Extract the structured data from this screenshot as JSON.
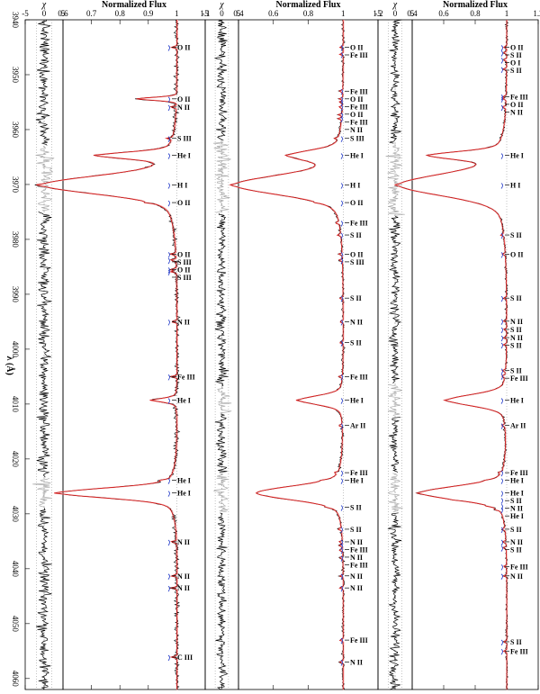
{
  "figure": {
    "y_axis_label": "λ (Å)",
    "wavelength_range": [
      3940,
      4062
    ],
    "wavelength_ticks": [
      "3940",
      "3950",
      "3960",
      "3970",
      "3980",
      "3990",
      "4000",
      "4010",
      "4020",
      "4030",
      "4040",
      "4050",
      "4060"
    ]
  },
  "chart_data": [
    {
      "type": "line",
      "panel": "residual-1",
      "xlabel": "χ",
      "xlim": [
        -5,
        5
      ],
      "x_ticks": [
        "-5",
        "0",
        "5"
      ],
      "series": [
        {
          "name": "",
          "color": "#000000"
        },
        {
          "name": "",
          "color": "#aaaaaa"
        }
      ]
    },
    {
      "type": "line",
      "panel": "spectrum-1",
      "xlabel": "Normalized Flux",
      "xlim": [
        0.6,
        1.1
      ],
      "x_ticks": [
        "0.6",
        "0.7",
        "0.8",
        "0.9",
        "1",
        "1.1"
      ],
      "series": [
        {
          "name": "",
          "color": "#000000"
        },
        {
          "name": "",
          "color": "#e02020"
        },
        {
          "name": "",
          "color": "#f2b8b8"
        }
      ],
      "lines": [
        {
          "label": "O II",
          "lambda": 3945.0
        },
        {
          "label": "O II",
          "lambda": 3954.4
        },
        {
          "label": "N II",
          "lambda": 3955.9
        },
        {
          "label": "S III",
          "lambda": 3961.6
        },
        {
          "label": "He I",
          "lambda": 3964.7
        },
        {
          "label": "H I",
          "lambda": 3970.1
        },
        {
          "label": "O II",
          "lambda": 3973.3
        },
        {
          "label": "O II",
          "lambda": 3982.7
        },
        {
          "label": "S III",
          "lambda": 3983.8
        },
        {
          "label": "O II",
          "lambda": 3985.5
        },
        {
          "label": "S III",
          "lambda": 3985.9
        },
        {
          "label": "N II",
          "lambda": 3995.0
        },
        {
          "label": "Fe III",
          "lambda": 4005.0
        },
        {
          "label": "He I",
          "lambda": 4009.3
        },
        {
          "label": "He I",
          "lambda": 4023.9
        },
        {
          "label": "He I",
          "lambda": 4026.2
        },
        {
          "label": "N II",
          "lambda": 4035.1
        },
        {
          "label": "N II",
          "lambda": 4041.3
        },
        {
          "label": "N II",
          "lambda": 4043.5
        },
        {
          "label": "C III",
          "lambda": 4056.1
        }
      ]
    },
    {
      "type": "line",
      "panel": "residual-2",
      "xlabel": "χ",
      "xlim": [
        -5,
        5
      ],
      "x_ticks": [
        "-5",
        "0",
        "5"
      ],
      "series": [
        {
          "name": "",
          "color": "#000000"
        },
        {
          "name": "",
          "color": "#aaaaaa"
        }
      ]
    },
    {
      "type": "line",
      "panel": "spectrum-2",
      "xlabel": "Normalized Flux",
      "xlim": [
        0.4,
        1.2
      ],
      "x_ticks": [
        "0.4",
        "0.6",
        "0.8",
        "1",
        "1.2"
      ],
      "series": [
        {
          "name": "",
          "color": "#000000"
        },
        {
          "name": "",
          "color": "#e02020"
        },
        {
          "name": "",
          "color": "#f2b8b8"
        }
      ],
      "lines": [
        {
          "label": "O II",
          "lambda": 3945.0
        },
        {
          "label": "Fe III",
          "lambda": 3946.3
        },
        {
          "label": "Fe III",
          "lambda": 3953.0
        },
        {
          "label": "O II",
          "lambda": 3954.4
        },
        {
          "label": "Fe III",
          "lambda": 3955.0
        },
        {
          "label": "O II",
          "lambda": 3955.9
        },
        {
          "label": "Fe III",
          "lambda": 3957.3
        },
        {
          "label": "N II",
          "lambda": 3958.0
        },
        {
          "label": "S III",
          "lambda": 3961.6
        },
        {
          "label": "He I",
          "lambda": 3964.7
        },
        {
          "label": "H I",
          "lambda": 3970.1
        },
        {
          "label": "O II",
          "lambda": 3973.3
        },
        {
          "label": "Fe III",
          "lambda": 3977.0
        },
        {
          "label": "S II",
          "lambda": 3979.2
        },
        {
          "label": "O II",
          "lambda": 3982.7
        },
        {
          "label": "S III",
          "lambda": 3983.8
        },
        {
          "label": "S II",
          "lambda": 3990.7
        },
        {
          "label": "N II",
          "lambda": 3995.0
        },
        {
          "label": "S II",
          "lambda": 3998.8
        },
        {
          "label": "Fe III",
          "lambda": 4005.0
        },
        {
          "label": "He I",
          "lambda": 4009.3
        },
        {
          "label": "Ar II",
          "lambda": 4013.9
        },
        {
          "label": "Fe III",
          "lambda": 4022.5
        },
        {
          "label": "He I",
          "lambda": 4023.9
        },
        {
          "label": "S II",
          "lambda": 4028.8
        },
        {
          "label": "S II",
          "lambda": 4032.8
        },
        {
          "label": "N II",
          "lambda": 4035.1
        },
        {
          "label": "Fe III",
          "lambda": 4035.8
        },
        {
          "label": "N II",
          "lambda": 4036.6
        },
        {
          "label": "Fe III",
          "lambda": 4038.0
        },
        {
          "label": "N II",
          "lambda": 4041.3
        },
        {
          "label": "N II",
          "lambda": 4043.5
        },
        {
          "label": "Fe III",
          "lambda": 4053.0
        },
        {
          "label": "N II",
          "lambda": 4057.0
        }
      ]
    },
    {
      "type": "line",
      "panel": "residual-3",
      "xlabel": "χ",
      "xlim": [
        -5,
        5
      ],
      "x_ticks": [
        "-5",
        "0",
        "5"
      ],
      "series": [
        {
          "name": "",
          "color": "#000000"
        },
        {
          "name": "",
          "color": "#aaaaaa"
        }
      ]
    },
    {
      "type": "line",
      "panel": "spectrum-3",
      "xlabel": "Normalized Flux",
      "xlim": [
        0.4,
        1.2
      ],
      "x_ticks": [
        "0.4",
        "0.6",
        "0.8",
        "1",
        "1.2"
      ],
      "series": [
        {
          "name": "",
          "color": "#000000"
        },
        {
          "name": "",
          "color": "#e02020"
        },
        {
          "name": "",
          "color": "#f2b8b8"
        }
      ],
      "lines": [
        {
          "label": "O II",
          "lambda": 3945.0
        },
        {
          "label": "S II",
          "lambda": 3946.0
        },
        {
          "label": "O I",
          "lambda": 3947.3
        },
        {
          "label": "S II",
          "lambda": 3949.0
        },
        {
          "label": "Fe III",
          "lambda": 3954.0
        },
        {
          "label": "O II",
          "lambda": 3954.4
        },
        {
          "label": "N II",
          "lambda": 3955.9
        },
        {
          "label": "He I",
          "lambda": 3964.7
        },
        {
          "label": "H I",
          "lambda": 3970.1
        },
        {
          "label": "S II",
          "lambda": 3979.2
        },
        {
          "label": "O II",
          "lambda": 3982.7
        },
        {
          "label": "S II",
          "lambda": 3990.7
        },
        {
          "label": "N II",
          "lambda": 3994.9
        },
        {
          "label": "S II",
          "lambda": 3996.4
        },
        {
          "label": "N II",
          "lambda": 3997.9
        },
        {
          "label": "S II",
          "lambda": 3999.2
        },
        {
          "label": "S II",
          "lambda": 4003.9
        },
        {
          "label": "Fe III",
          "lambda": 4004.9
        },
        {
          "label": "He I",
          "lambda": 4009.3
        },
        {
          "label": "Ar II",
          "lambda": 4013.9
        },
        {
          "label": "Fe III",
          "lambda": 4022.5
        },
        {
          "label": "He I",
          "lambda": 4023.9
        },
        {
          "label": "He I",
          "lambda": 4026.2
        },
        {
          "label": "S II",
          "lambda": 4027.5
        },
        {
          "label": "N II",
          "lambda": 4028.6
        },
        {
          "label": "He I",
          "lambda": 4029.2
        },
        {
          "label": "S II",
          "lambda": 4032.8
        },
        {
          "label": "N II",
          "lambda": 4035.1
        },
        {
          "label": "S II",
          "lambda": 4036.2
        },
        {
          "label": "Fe III",
          "lambda": 4039.6
        },
        {
          "label": "N II",
          "lambda": 4041.3
        },
        {
          "label": "S II",
          "lambda": 4053.3
        },
        {
          "label": "Fe III",
          "lambda": 4055.0
        }
      ]
    }
  ]
}
